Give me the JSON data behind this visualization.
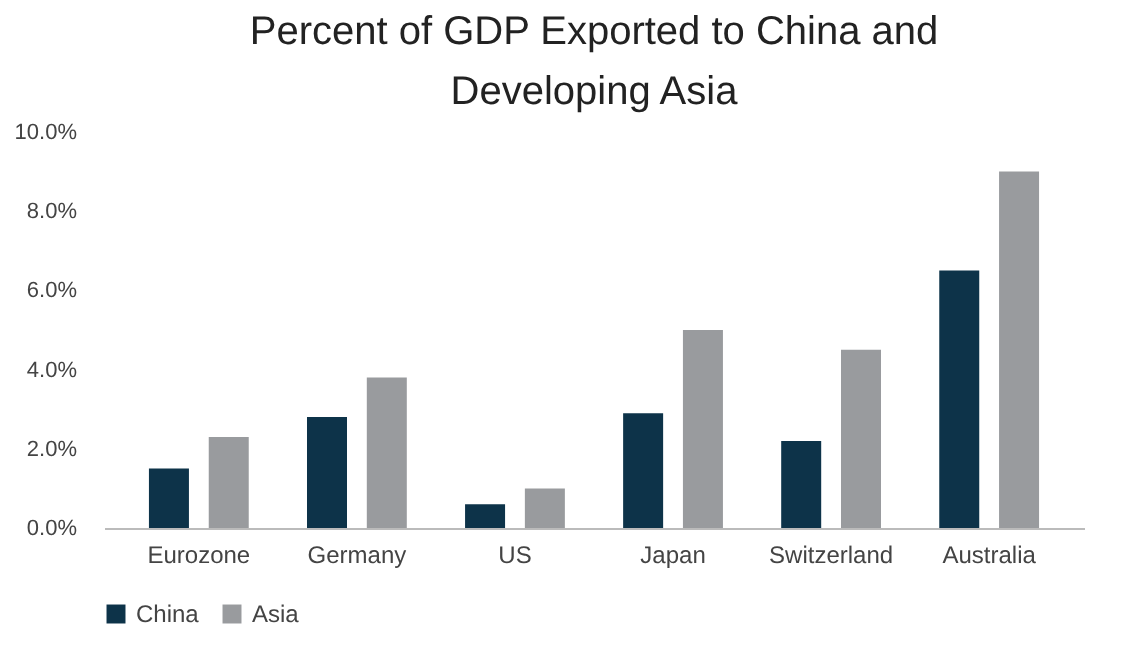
{
  "chart_data": {
    "type": "bar",
    "title": "Percent of GDP Exported to China and Developing Asia",
    "categories": [
      "Eurozone",
      "Germany",
      "US",
      "Japan",
      "Switzerland",
      "Australia"
    ],
    "series": [
      {
        "name": "China",
        "color": "#0d3349",
        "values": [
          1.5,
          2.8,
          0.6,
          2.9,
          2.2,
          6.5
        ]
      },
      {
        "name": "Asia",
        "color": "#999b9e",
        "values": [
          2.3,
          3.8,
          1.0,
          5.0,
          4.5,
          9.0
        ]
      }
    ],
    "ylim": [
      0,
      10
    ],
    "yticks": [
      {
        "value": 0,
        "label": "0.0%"
      },
      {
        "value": 2,
        "label": "2.0%"
      },
      {
        "value": 4,
        "label": "4.0%"
      },
      {
        "value": 6,
        "label": "6.0%"
      },
      {
        "value": 8,
        "label": "8.0%"
      },
      {
        "value": 10,
        "label": "10.0%"
      }
    ],
    "grid": false,
    "legend": "bottom"
  }
}
